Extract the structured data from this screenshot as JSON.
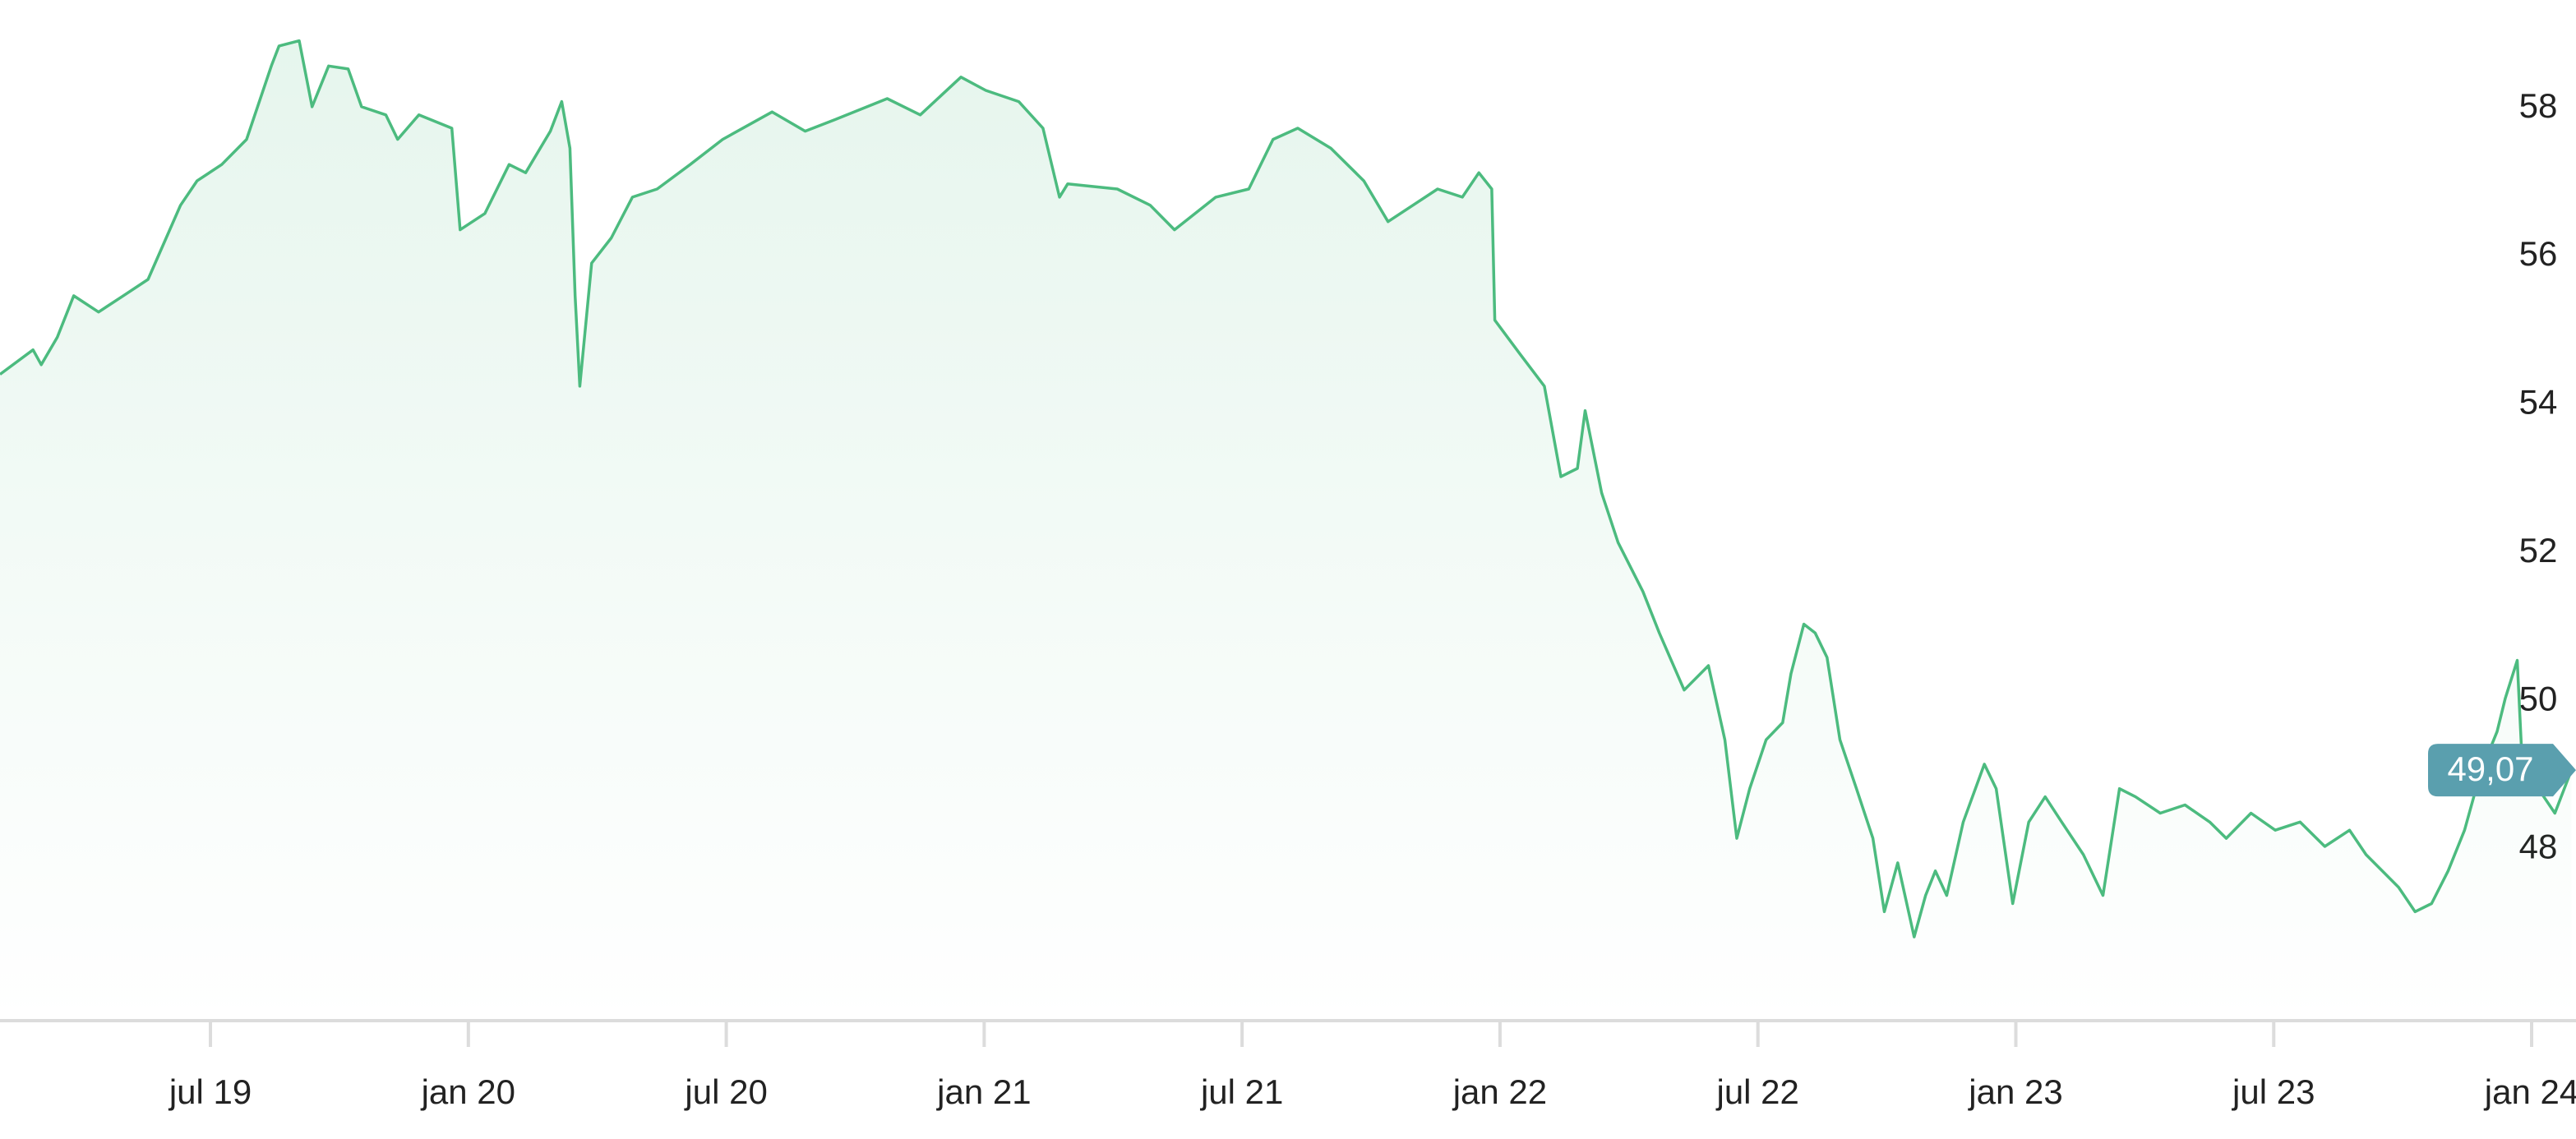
{
  "chart_data": {
    "type": "line",
    "x": [
      2019.092,
      2019.156,
      2019.172,
      2019.203,
      2019.235,
      2019.283,
      2019.331,
      2019.379,
      2019.442,
      2019.474,
      2019.522,
      2019.57,
      2019.618,
      2019.633,
      2019.672,
      2019.697,
      2019.729,
      2019.767,
      2019.793,
      2019.84,
      2019.863,
      2019.904,
      2019.968,
      2019.984,
      2020.032,
      2020.079,
      2020.111,
      2020.159,
      2020.181,
      2020.197,
      2020.207,
      2020.216,
      2020.239,
      2020.277,
      2020.318,
      2020.366,
      2020.43,
      2020.493,
      2020.589,
      2020.653,
      2020.716,
      2020.812,
      2020.876,
      2020.955,
      2021.003,
      2021.067,
      2021.114,
      2021.146,
      2021.162,
      2021.258,
      2021.322,
      2021.369,
      2021.449,
      2021.513,
      2021.56,
      2021.608,
      2021.672,
      2021.736,
      2021.783,
      2021.831,
      2021.879,
      2021.927,
      2021.959,
      2021.984,
      2021.99,
      2022.038,
      2022.086,
      2022.118,
      2022.15,
      2022.165,
      2022.197,
      2022.229,
      2022.277,
      2022.309,
      2022.357,
      2022.404,
      2022.436,
      2022.459,
      2022.484,
      2022.516,
      2022.548,
      2022.564,
      2022.589,
      2022.611,
      2022.634,
      2022.659,
      2022.691,
      2022.723,
      2022.745,
      2022.771,
      2022.803,
      2022.825,
      2022.844,
      2022.866,
      2022.898,
      2022.939,
      2022.962,
      2022.994,
      2023.025,
      2023.057,
      2023.089,
      2023.131,
      2023.169,
      2023.201,
      2023.232,
      2023.28,
      2023.328,
      2023.376,
      2023.408,
      2023.456,
      2023.503,
      2023.551,
      2023.599,
      2023.647,
      2023.679,
      2023.742,
      2023.774,
      2023.806,
      2023.838,
      2023.87,
      2023.901,
      2023.933,
      2023.949,
      2023.972,
      2023.981,
      2024.013,
      2024.045,
      2024.077
    ],
    "values": [
      54.41,
      54.74,
      54.54,
      54.91,
      55.47,
      55.25,
      55.47,
      55.69,
      56.69,
      57.02,
      57.24,
      57.58,
      58.57,
      58.84,
      58.91,
      58.02,
      58.57,
      58.53,
      58.02,
      57.91,
      57.58,
      57.91,
      57.73,
      56.36,
      56.58,
      57.24,
      57.13,
      57.69,
      58.09,
      57.46,
      55.47,
      54.25,
      55.91,
      56.25,
      56.8,
      56.91,
      57.24,
      57.58,
      57.95,
      57.69,
      57.86,
      58.13,
      57.91,
      58.42,
      58.24,
      58.09,
      57.73,
      56.8,
      56.98,
      56.91,
      56.69,
      56.36,
      56.8,
      56.91,
      57.58,
      57.73,
      57.46,
      57.02,
      56.47,
      56.69,
      56.91,
      56.8,
      57.13,
      56.91,
      55.14,
      54.69,
      54.25,
      53.03,
      53.14,
      53.92,
      52.81,
      52.14,
      51.48,
      50.92,
      50.15,
      50.48,
      49.48,
      48.15,
      48.82,
      49.48,
      49.71,
      50.37,
      51.04,
      50.92,
      50.59,
      49.48,
      48.82,
      48.15,
      47.16,
      47.82,
      46.82,
      47.38,
      47.71,
      47.38,
      48.37,
      49.15,
      48.82,
      47.27,
      48.37,
      48.71,
      48.37,
      47.93,
      47.38,
      48.82,
      48.71,
      48.49,
      48.6,
      48.37,
      48.15,
      48.49,
      48.26,
      48.37,
      48.04,
      48.26,
      47.93,
      47.49,
      47.16,
      47.27,
      47.71,
      48.26,
      49.04,
      49.59,
      50.04,
      50.55,
      49.26,
      48.82,
      48.49,
      49.07
    ],
    "color": "#4cbb7f",
    "current_value": 49.07,
    "current_label": "49,07",
    "badge_color": "#5a9fae",
    "xlim": [
      2019.092,
      2024.086
    ],
    "xticks": [
      {
        "value": 2019.5,
        "label": "jul 19"
      },
      {
        "value": 2020.0,
        "label": "jan 20"
      },
      {
        "value": 2020.5,
        "label": "jul 20"
      },
      {
        "value": 2021.0,
        "label": "jan 21"
      },
      {
        "value": 2021.5,
        "label": "jul 21"
      },
      {
        "value": 2022.0,
        "label": "jan 22"
      },
      {
        "value": 2022.5,
        "label": "jul 22"
      },
      {
        "value": 2023.0,
        "label": "jan 23"
      },
      {
        "value": 2023.5,
        "label": "jul 23"
      },
      {
        "value": 2024.0,
        "label": "jan 24"
      }
    ],
    "ylim": [
      45.69,
      59.46
    ],
    "yticks": [
      48,
      50,
      52,
      54,
      56,
      58
    ],
    "grid": false
  }
}
